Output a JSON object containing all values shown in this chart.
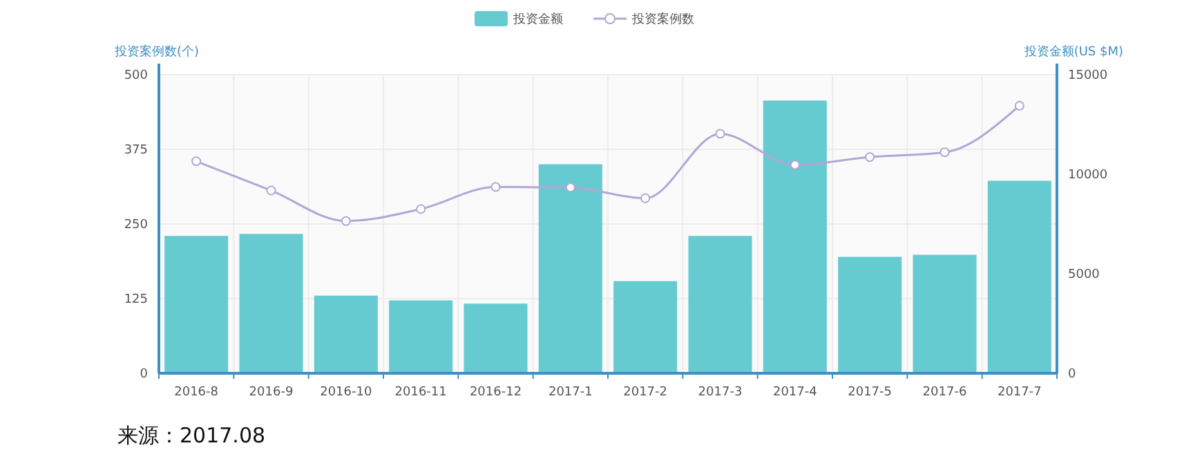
{
  "chart_data": {
    "type": "bar",
    "categories": [
      "2016-8",
      "2016-9",
      "2016-10",
      "2016-11",
      "2016-12",
      "2017-1",
      "2017-2",
      "2017-3",
      "2017-4",
      "2017-5",
      "2017-6",
      "2017-7"
    ],
    "series": [
      {
        "name": "投资金额",
        "axis": "y2",
        "color": "#66cbd1",
        "values": [
          6900,
          7000,
          3900,
          3660,
          3500,
          10500,
          4630,
          6900,
          13700,
          5850,
          5950,
          9670
        ]
      },
      {
        "name": "投资案例数",
        "type": "line",
        "color": "#b3a6d6",
        "marker": "circle",
        "values": [
          355,
          306,
          255,
          275,
          312,
          311,
          293,
          401,
          349,
          362,
          370,
          448
        ]
      }
    ],
    "ylabel": "投资案例数(个)",
    "y2label": "投资金额(US $M)",
    "ylim": [
      0,
      500
    ],
    "yticks": [
      0,
      125,
      250,
      375,
      500
    ],
    "y2lim": [
      0,
      15000
    ],
    "y2ticks": [
      0,
      5000,
      10000,
      15000
    ],
    "grid": true,
    "legend": "top",
    "annotations": [
      "来源：2017.08"
    ]
  }
}
